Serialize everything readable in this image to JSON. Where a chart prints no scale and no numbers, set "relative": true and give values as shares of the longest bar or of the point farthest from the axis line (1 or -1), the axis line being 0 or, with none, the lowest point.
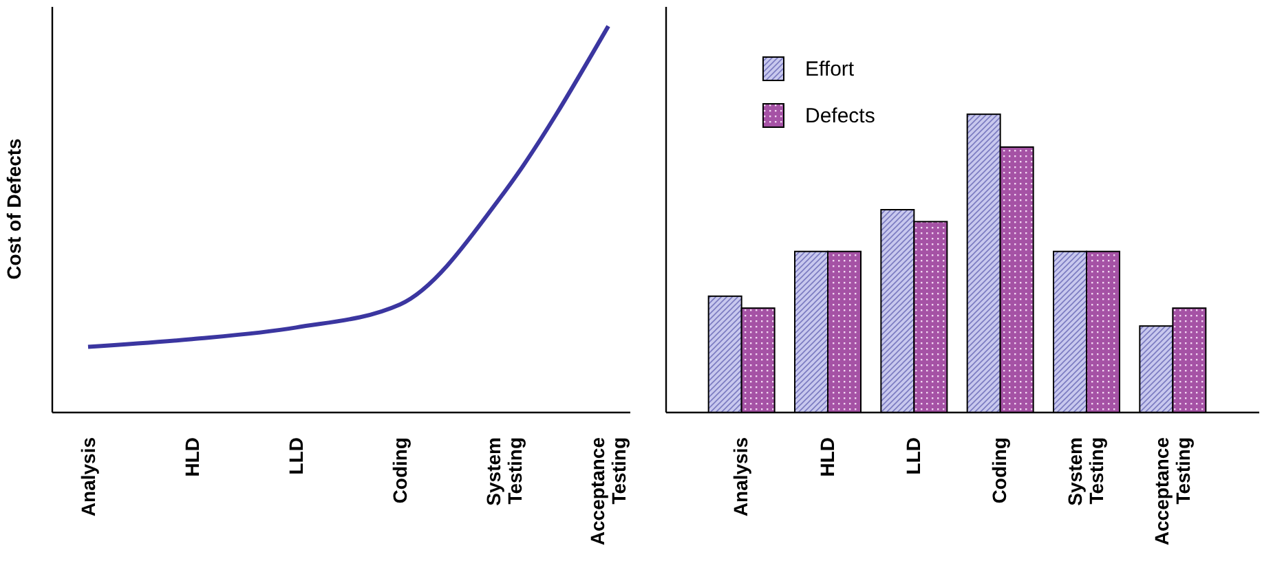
{
  "chart_data": [
    {
      "type": "line",
      "ylabel": "Cost of Defects",
      "relative": true,
      "categories": [
        "Analysis",
        "HLD",
        "LLD",
        "Coding",
        "System Testing",
        "Acceptance Testing"
      ],
      "series": [
        {
          "color": "#3b36a0",
          "values": [
            0.17,
            0.19,
            0.22,
            0.28,
            0.57,
            1
          ]
        }
      ],
      "legend": false,
      "grid": false,
      "marker": "none"
    },
    {
      "type": "bar",
      "relative": true,
      "categories": [
        "Analysis",
        "HLD",
        "LLD",
        "Coding",
        "System Testing",
        "Acceptance Testing"
      ],
      "series": [
        {
          "name": "Effort",
          "color": "#c8c8ee",
          "values": [
            0.39,
            0.54,
            0.68,
            1,
            0.54,
            0.29
          ]
        },
        {
          "name": "Defects",
          "color": "#a552a5",
          "values": [
            0.35,
            0.54,
            0.64,
            0.89,
            0.54,
            0.35
          ]
        }
      ],
      "legend": "top left",
      "grid": false
    }
  ]
}
